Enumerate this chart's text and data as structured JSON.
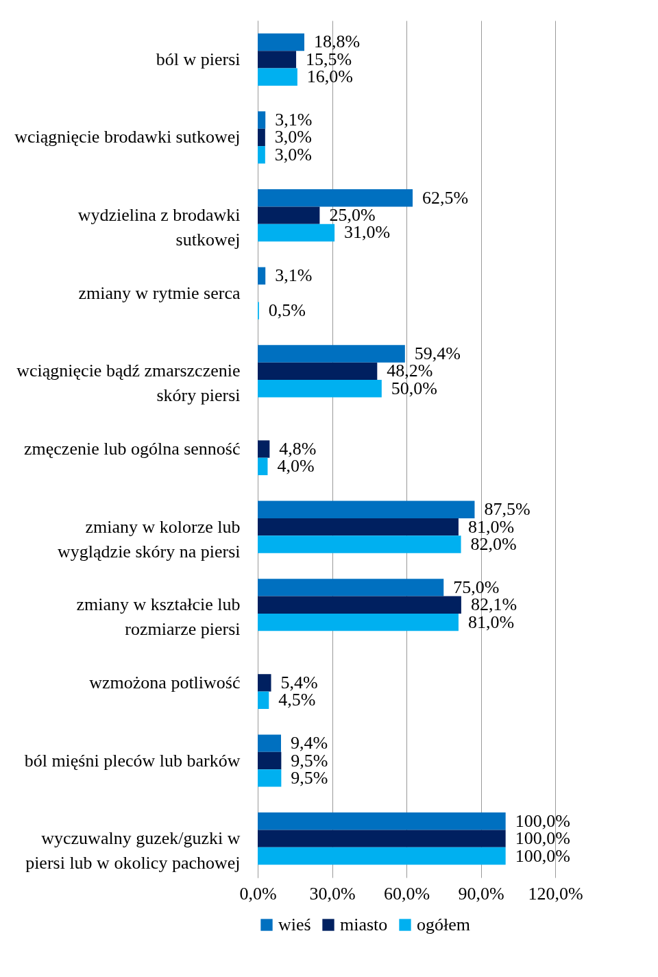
{
  "chart_data": {
    "type": "bar",
    "orientation": "horizontal",
    "categories": [
      "ból w piersi",
      "wciągnięcie brodawki sutkowej",
      "wydzielina z brodawki sutkowej",
      "zmiany w rytmie serca",
      "wciągnięcie bądź zmarszczenie skóry piersi",
      "zmęczenie lub ogólna senność",
      "zmiany w kolorze lub wyglądzie skóry na piersi",
      "zmiany w kształcie lub rozmiarze piersi",
      "wzmożona potliwość",
      "ból mięśni pleców lub barków",
      "wyczuwalny guzek/guzki w piersi lub w okolicy pachowej"
    ],
    "series": [
      {
        "name": "wieś",
        "color": "#0070c0",
        "values": [
          18.8,
          3.1,
          62.5,
          3.1,
          59.4,
          null,
          87.5,
          75.0,
          null,
          9.4,
          100.0
        ],
        "value_labels": [
          "18,8%",
          "3,1%",
          "62,5%",
          "3,1%",
          "59,4%",
          null,
          "87,5%",
          "75,0%",
          null,
          "9,4%",
          "100,0%"
        ]
      },
      {
        "name": "miasto",
        "color": "#002060",
        "values": [
          15.5,
          3.0,
          25.0,
          null,
          48.2,
          4.8,
          81.0,
          82.1,
          5.4,
          9.5,
          100.0
        ],
        "value_labels": [
          "15,5%",
          "3,0%",
          "25,0%",
          null,
          "48,2%",
          "4,8%",
          "81,0%",
          "82,1%",
          "5,4%",
          "9,5%",
          "100,0%"
        ]
      },
      {
        "name": "ogółem",
        "color": "#00b0f0",
        "values": [
          16.0,
          3.0,
          31.0,
          0.5,
          50.0,
          4.0,
          82.0,
          81.0,
          4.5,
          9.5,
          100.0
        ],
        "value_labels": [
          "16,0%",
          "3,0%",
          "31,0%",
          "0,5%",
          "50,0%",
          "4,0%",
          "82,0%",
          "81,0%",
          "4,5%",
          "9,5%",
          "100,0%"
        ]
      }
    ],
    "xlim": [
      0,
      120
    ],
    "xticks": [
      {
        "value": 0,
        "label": "0,0%"
      },
      {
        "value": 30,
        "label": "30,0%"
      },
      {
        "value": 60,
        "label": "60,0%"
      },
      {
        "value": 90,
        "label": "90,0%"
      },
      {
        "value": 120,
        "label": "120,0%"
      }
    ],
    "grid": "x",
    "legend": "bottom"
  }
}
